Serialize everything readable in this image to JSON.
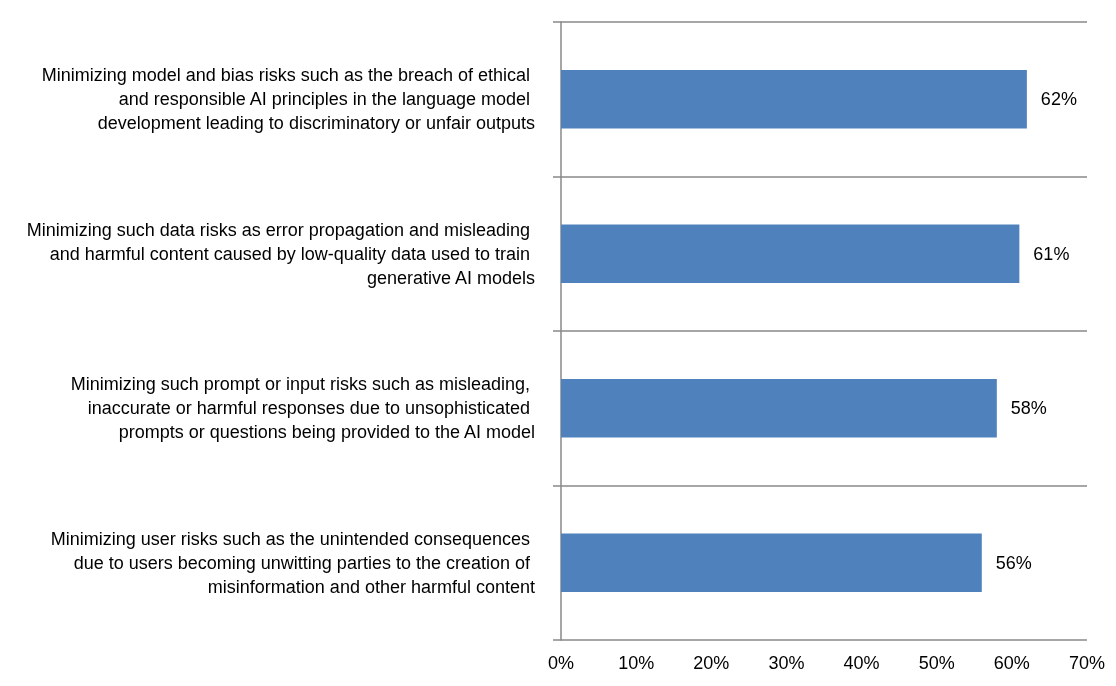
{
  "chart_data": {
    "type": "bar",
    "orientation": "horizontal",
    "categories": [
      "Minimizing model and bias risks such as the breach of ethical and responsible AI principles in the language model development leading to discriminatory or unfair outputs",
      "Minimizing such data risks as error propagation and misleading and harmful content caused by low-quality data used to train generative AI models",
      "Minimizing such prompt or input risks such as misleading, inaccurate or harmful responses due to unsophisticated prompts or questions being provided to the AI model",
      "Minimizing user risks such as the unintended consequences due to users becoming unwitting parties to the creation of misinformation and other harmful content"
    ],
    "values": [
      62,
      61,
      58,
      56
    ],
    "value_labels": [
      "62%",
      "61%",
      "58%",
      "56%"
    ],
    "color": "#4f81bd",
    "xlim": [
      0,
      70
    ],
    "xticks": [
      {
        "value": 0,
        "label": "0%"
      },
      {
        "value": 10,
        "label": "10%"
      },
      {
        "value": 20,
        "label": "20%"
      },
      {
        "value": 30,
        "label": "30%"
      },
      {
        "value": 40,
        "label": "40%"
      },
      {
        "value": 50,
        "label": "50%"
      },
      {
        "value": 60,
        "label": "60%"
      },
      {
        "value": 70,
        "label": "70%"
      }
    ],
    "grid": "y"
  }
}
